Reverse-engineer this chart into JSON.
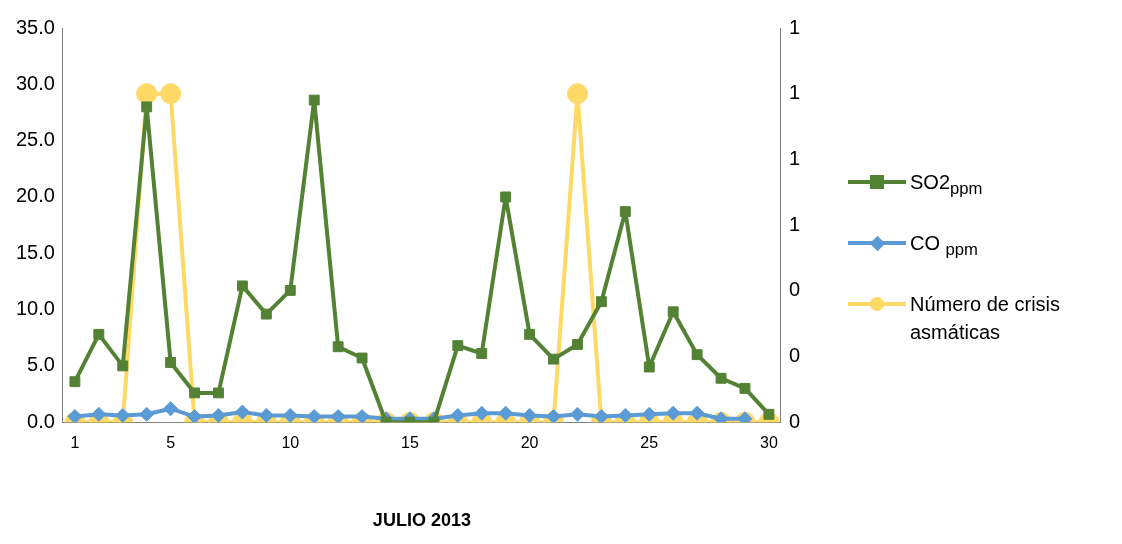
{
  "chart_data": {
    "type": "line",
    "xlabel": "JULIO 2013",
    "x": [
      1,
      2,
      3,
      4,
      5,
      6,
      7,
      8,
      9,
      10,
      11,
      12,
      13,
      14,
      15,
      16,
      17,
      18,
      19,
      20,
      21,
      22,
      23,
      24,
      25,
      26,
      27,
      28,
      29,
      30
    ],
    "xlim": [
      0.5,
      30.5
    ],
    "xticks": [
      1,
      5,
      10,
      15,
      20,
      25,
      30
    ],
    "series": [
      {
        "name": "SO2$_{ppm}$",
        "color": "#548235",
        "marker": "square",
        "values": [
          3.6,
          7.8,
          5.0,
          28.0,
          5.3,
          2.6,
          2.6,
          12.1,
          9.6,
          11.7,
          28.6,
          6.7,
          5.7,
          0,
          0,
          0,
          6.8,
          6.1,
          20.0,
          7.8,
          5.6,
          6.9,
          10.7,
          18.7,
          4.9,
          9.8,
          6.0,
          3.9,
          3.0,
          0.7
        ]
      },
      {
        "name": "CO $_{ppm}$",
        "color": "#5b9bd5",
        "marker": "diamond",
        "values": [
          0.5,
          0.7,
          0.6,
          0.7,
          1.2,
          0.5,
          0.6,
          0.9,
          0.6,
          0.6,
          0.5,
          0.5,
          0.5,
          0.3,
          0.3,
          0.3,
          0.6,
          0.8,
          0.8,
          0.6,
          0.5,
          0.7,
          0.5,
          0.6,
          0.7,
          0.8,
          0.8,
          0.3,
          0.3,
          null
        ]
      },
      {
        "name": "Número de crisis asmáticas",
        "color": "#ffd966",
        "marker": "circle",
        "axis": "y2",
        "values": [
          0,
          0,
          0,
          1,
          1,
          0,
          0,
          0,
          0,
          0,
          0,
          0,
          0,
          0,
          0,
          0,
          0,
          0,
          0,
          0,
          0,
          1,
          0,
          0,
          0,
          0,
          0,
          0,
          0,
          0
        ]
      }
    ],
    "ylim": [
      0,
      35
    ],
    "yticks": [
      {
        "value": 0,
        "label": "0.0"
      },
      {
        "value": 5,
        "label": "5.0"
      },
      {
        "value": 10,
        "label": "10.0"
      },
      {
        "value": 15,
        "label": "15.0"
      },
      {
        "value": 20,
        "label": "20.0"
      },
      {
        "value": 25,
        "label": "25.0"
      },
      {
        "value": 30,
        "label": "30.0"
      },
      {
        "value": 35,
        "label": "35.0"
      }
    ],
    "y2lim": [
      0,
      1.2
    ],
    "y2ticks": [
      0,
      {
        "value": 0.2,
        "label": "0"
      },
      {
        "value": 0.4,
        "label": "0"
      },
      {
        "value": 0.6,
        "label": "1"
      },
      {
        "value": 0.8,
        "label": "1"
      },
      {
        "value": 1,
        "label": "1"
      },
      {
        "value": 1.2,
        "label": "1"
      }
    ],
    "grid": false,
    "legend": "right",
    "line_style": "solid"
  }
}
